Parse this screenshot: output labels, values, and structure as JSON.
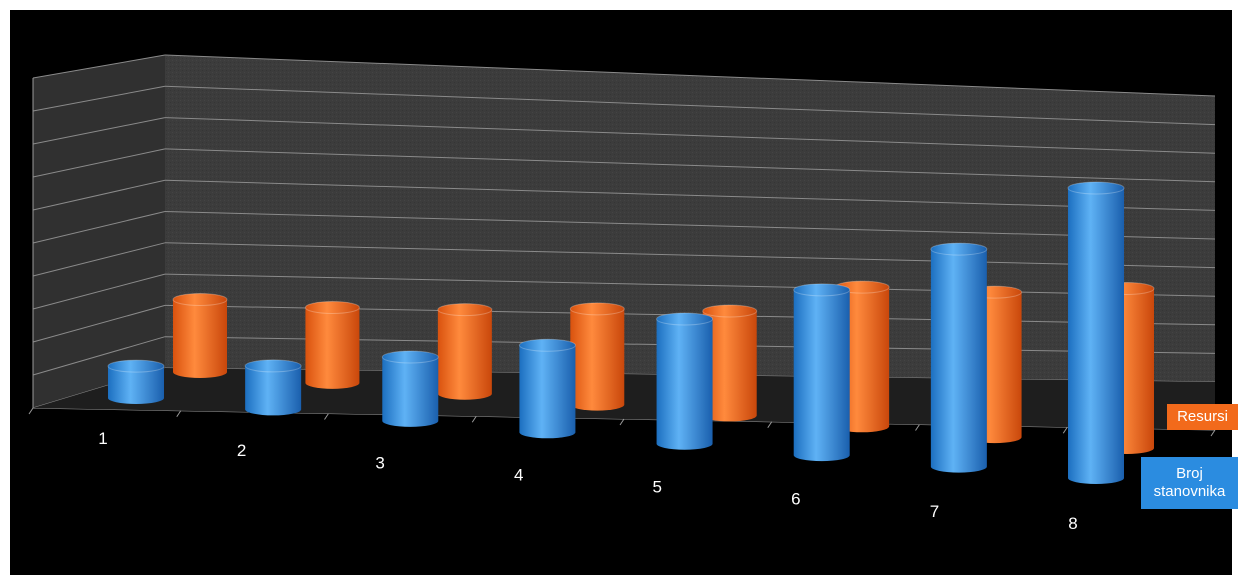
{
  "chart_data": {
    "type": "bar",
    "style": "3d-cylinder",
    "categories": [
      "1",
      "2",
      "3",
      "4",
      "5",
      "6",
      "7",
      "8"
    ],
    "series": [
      {
        "name": "Resursi",
        "color": "#f26a1b",
        "values": [
          2.5,
          2.6,
          2.9,
          3.3,
          3.6,
          4.8,
          5.0,
          5.5
        ]
      },
      {
        "name": "Broj stanovnika",
        "color": "#2b8ce0",
        "values": [
          1.1,
          1.5,
          2.2,
          3.0,
          4.3,
          5.7,
          7.5,
          10.0
        ]
      }
    ],
    "ylim": [
      0,
      10
    ],
    "grid": true,
    "legend": "right",
    "colors": {
      "background": "#000000",
      "wall": "#3a3a3a",
      "gridline": "#8a8a8a"
    }
  }
}
